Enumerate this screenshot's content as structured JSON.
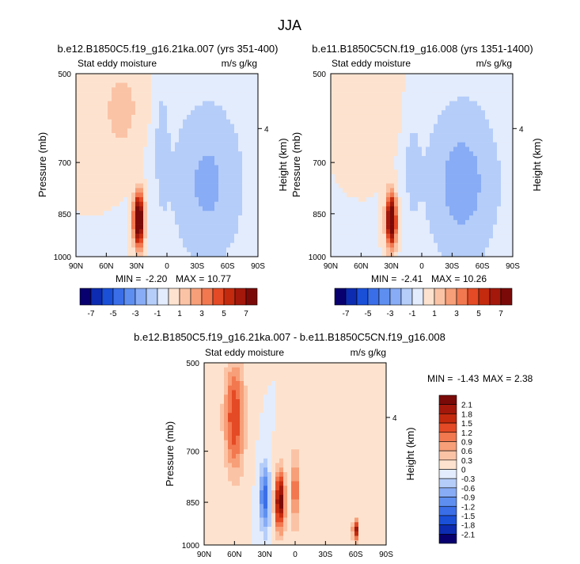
{
  "figure": {
    "title": "JJA"
  },
  "colorbar_top": {
    "levels": [
      -7,
      -6,
      -5,
      -4,
      -3,
      -2,
      -1,
      0,
      1,
      2,
      3,
      4,
      5,
      6,
      7
    ],
    "tick_labels": [
      "-7",
      "-5",
      "-3",
      "-1",
      "1",
      "3",
      "5",
      "7"
    ],
    "colors": [
      "#08006e",
      "#0c2bb0",
      "#1a4fd8",
      "#3a6ee8",
      "#5e8ff0",
      "#88acf5",
      "#b5cdf9",
      "#e3ecfc",
      "#fde3cf",
      "#fbc3a6",
      "#f79f78",
      "#f27850",
      "#e44a25",
      "#c42a0e",
      "#a3180b",
      "#7a0a08"
    ]
  },
  "colorbar_bottom": {
    "tick_labels": [
      "2.1",
      "1.8",
      "1.5",
      "1.2",
      "0.9",
      "0.6",
      "0.3",
      "0",
      "-0.3",
      "-0.6",
      "-0.9",
      "-1.2",
      "-1.5",
      "-1.8",
      "-2.1"
    ],
    "colors": [
      "#7a0a08",
      "#a3180b",
      "#c42a0e",
      "#e44a25",
      "#f27850",
      "#f79f78",
      "#fbc3a6",
      "#fde3cf",
      "#e3ecfc",
      "#b5cdf9",
      "#88acf5",
      "#5e8ff0",
      "#3a6ee8",
      "#1a4fd8",
      "#0c2bb0",
      "#08006e"
    ]
  },
  "chart_data": [
    {
      "type": "heatmap",
      "title": "b.e12.B1850C5.f19_g16.21ka.007 (yrs 351-400)",
      "left_label": "Stat eddy moisture",
      "right_label": "m/s g/kg",
      "xlabel": "",
      "ylabel": "Pressure (mb)",
      "ylabel_right": "Height (km)",
      "x_ticks": [
        "90N",
        "60N",
        "30N",
        "0",
        "30S",
        "60S",
        "90S"
      ],
      "y_ticks": [
        "500",
        "700",
        "850",
        "1000"
      ],
      "right_ticks": [
        "4"
      ],
      "stats": {
        "min_label": "MIN =",
        "min": "-2.20",
        "max_label": "MAX =",
        "max": "10.77"
      },
      "xlim": [
        90,
        -90
      ],
      "ylim_pressure": [
        1000,
        500
      ],
      "features": [
        {
          "lat": 28,
          "p": 900,
          "value": 10.77,
          "lat_halfwidth": 5,
          "p_halfdepth": 70
        },
        {
          "lat": 45,
          "p": 600,
          "value": 1.5,
          "lat_halfwidth": 20,
          "p_halfdepth": 120
        },
        {
          "lat": 5,
          "p": 700,
          "value": -1.5,
          "lat_halfwidth": 6,
          "p_halfdepth": 150
        },
        {
          "lat": -40,
          "p": 800,
          "value": -2.2,
          "lat_halfwidth": 40,
          "p_halfdepth": 250
        }
      ]
    },
    {
      "type": "heatmap",
      "title": "b.e11.B1850C5CN.f19_g16.008 (yrs 1351-1400)",
      "left_label": "Stat eddy moisture",
      "right_label": "m/s g/kg",
      "xlabel": "",
      "ylabel": "Pressure (mb)",
      "ylabel_right": "Height (km)",
      "x_ticks": [
        "90N",
        "60N",
        "30N",
        "0",
        "30S",
        "60S",
        "90S"
      ],
      "y_ticks": [
        "500",
        "700",
        "850",
        "1000"
      ],
      "right_ticks": [
        "4"
      ],
      "stats": {
        "min_label": "MIN =",
        "min": "-2.41",
        "max_label": "MAX =",
        "max": "10.26"
      },
      "xlim": [
        90,
        -90
      ],
      "ylim_pressure": [
        1000,
        500
      ],
      "features": [
        {
          "lat": 30,
          "p": 900,
          "value": 10.26,
          "lat_halfwidth": 5,
          "p_halfdepth": 70
        },
        {
          "lat": 40,
          "p": 600,
          "value": 1.0,
          "lat_halfwidth": 18,
          "p_halfdepth": 120
        },
        {
          "lat": 10,
          "p": 750,
          "value": -1.0,
          "lat_halfwidth": 8,
          "p_halfdepth": 150
        },
        {
          "lat": -40,
          "p": 800,
          "value": -2.41,
          "lat_halfwidth": 40,
          "p_halfdepth": 250
        }
      ]
    },
    {
      "type": "heatmap",
      "title": "b.e12.B1850C5.f19_g16.21ka.007 - b.e11.B1850C5CN.f19_g16.008",
      "left_label": "Stat eddy moisture",
      "right_label": "m/s g/kg",
      "xlabel": "",
      "ylabel": "Pressure (mb)",
      "ylabel_right": "Height (km)",
      "x_ticks": [
        "90N",
        "60N",
        "30N",
        "0",
        "30S",
        "60S",
        "90S"
      ],
      "y_ticks": [
        "500",
        "700",
        "850",
        "1000"
      ],
      "right_ticks": [
        "4"
      ],
      "stats": {
        "min_label": "MIN =",
        "min": "-1.43",
        "max_label": "MAX =",
        "max": "2.38"
      },
      "xlim": [
        90,
        -90
      ],
      "ylim_pressure": [
        1000,
        500
      ],
      "features": [
        {
          "lat": 60,
          "p": 650,
          "value": 1.5,
          "lat_halfwidth": 10,
          "p_halfdepth": 150
        },
        {
          "lat": 30,
          "p": 870,
          "value": -1.43,
          "lat_halfwidth": 5,
          "p_halfdepth": 90
        },
        {
          "lat": 15,
          "p": 880,
          "value": 2.38,
          "lat_halfwidth": 5,
          "p_halfdepth": 80
        },
        {
          "lat": 0,
          "p": 850,
          "value": 1.2,
          "lat_halfwidth": 4,
          "p_halfdepth": 100
        },
        {
          "lat": -60,
          "p": 960,
          "value": 2.0,
          "lat_halfwidth": 3,
          "p_halfdepth": 30
        }
      ]
    }
  ]
}
